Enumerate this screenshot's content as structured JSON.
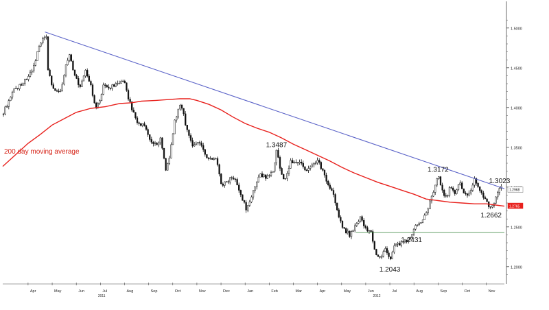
{
  "chart_data": {
    "type": "candlestick",
    "title": "",
    "xlabel": "",
    "ylabel": "",
    "ylim": [
      1.18,
      1.53
    ],
    "grid": false,
    "axis_position": "right",
    "y_ticks": [
      "1.5000",
      "1.4500",
      "1.4000",
      "1.3500",
      "1.3000",
      "1.2500",
      "1.2000"
    ],
    "x_ticks": [
      {
        "label": "Apr",
        "x": 0.0
      },
      {
        "label": "May",
        "x": 1.0
      },
      {
        "label": "Jun",
        "x": 2.0
      },
      {
        "label": "Jul",
        "x": 3.0
      },
      {
        "label": "Aug",
        "x": 4.0
      },
      {
        "label": "Sep",
        "x": 5.0
      },
      {
        "label": "Oct",
        "x": 6.0
      },
      {
        "label": "Nov",
        "x": 7.0
      },
      {
        "label": "Dec",
        "x": 8.0
      },
      {
        "label": "Jan",
        "x": 9.0
      },
      {
        "label": "Feb",
        "x": 10.0
      },
      {
        "label": "Mar",
        "x": 11.0
      },
      {
        "label": "Apr",
        "x": 12.0
      },
      {
        "label": "May",
        "x": 13.0
      },
      {
        "label": "Jun",
        "x": 14.0
      },
      {
        "label": "Jul",
        "x": 15.0
      },
      {
        "label": "Aug",
        "x": 16.0
      },
      {
        "label": "Sep",
        "x": 17.0
      },
      {
        "label": "Oct",
        "x": 18.0
      },
      {
        "label": "Nov",
        "x": 19.0
      }
    ],
    "year_labels": [
      {
        "label": "2011",
        "x": 2.9
      },
      {
        "label": "2012",
        "x": 14.3
      }
    ],
    "x_range": [
      -1.05,
      19.75
    ],
    "price_path": [
      [
        -1.05,
        1.392
      ],
      [
        -0.6,
        1.421
      ],
      [
        -0.2,
        1.43
      ],
      [
        0.2,
        1.448
      ],
      [
        0.5,
        1.482
      ],
      [
        0.75,
        1.493
      ],
      [
        0.8,
        1.451
      ],
      [
        0.95,
        1.432
      ],
      [
        1.15,
        1.418
      ],
      [
        1.35,
        1.422
      ],
      [
        1.6,
        1.458
      ],
      [
        1.75,
        1.466
      ],
      [
        1.9,
        1.44
      ],
      [
        2.15,
        1.428
      ],
      [
        2.4,
        1.446
      ],
      [
        2.6,
        1.428
      ],
      [
        2.8,
        1.4
      ],
      [
        3.0,
        1.41
      ],
      [
        3.15,
        1.43
      ],
      [
        3.4,
        1.425
      ],
      [
        3.7,
        1.43
      ],
      [
        3.95,
        1.436
      ],
      [
        4.15,
        1.412
      ],
      [
        4.45,
        1.385
      ],
      [
        4.8,
        1.376
      ],
      [
        5.2,
        1.352
      ],
      [
        5.5,
        1.36
      ],
      [
        5.7,
        1.322
      ],
      [
        5.85,
        1.335
      ],
      [
        6.1,
        1.386
      ],
      [
        6.35,
        1.405
      ],
      [
        6.55,
        1.375
      ],
      [
        6.8,
        1.352
      ],
      [
        7.1,
        1.356
      ],
      [
        7.45,
        1.333
      ],
      [
        7.8,
        1.336
      ],
      [
        8.0,
        1.302
      ],
      [
        8.35,
        1.31
      ],
      [
        8.55,
        1.312
      ],
      [
        8.8,
        1.292
      ],
      [
        9.05,
        1.272
      ],
      [
        9.3,
        1.292
      ],
      [
        9.6,
        1.315
      ],
      [
        9.9,
        1.312
      ],
      [
        10.15,
        1.32
      ],
      [
        10.3,
        1.345
      ],
      [
        10.5,
        1.318
      ],
      [
        10.65,
        1.308
      ],
      [
        10.9,
        1.332
      ],
      [
        11.1,
        1.33
      ],
      [
        11.3,
        1.332
      ],
      [
        11.5,
        1.318
      ],
      [
        11.75,
        1.325
      ],
      [
        12.0,
        1.336
      ],
      [
        12.15,
        1.325
      ],
      [
        12.4,
        1.307
      ],
      [
        12.6,
        1.296
      ],
      [
        12.85,
        1.268
      ],
      [
        13.1,
        1.246
      ],
      [
        13.35,
        1.24
      ],
      [
        13.55,
        1.252
      ],
      [
        13.8,
        1.262
      ],
      [
        14.05,
        1.244
      ],
      [
        14.2,
        1.248
      ],
      [
        14.4,
        1.216
      ],
      [
        14.6,
        1.212
      ],
      [
        14.8,
        1.224
      ],
      [
        15.0,
        1.206
      ],
      [
        15.2,
        1.228
      ],
      [
        15.4,
        1.228
      ],
      [
        15.6,
        1.232
      ],
      [
        15.85,
        1.236
      ],
      [
        16.05,
        1.249
      ],
      [
        16.3,
        1.256
      ],
      [
        16.55,
        1.272
      ],
      [
        16.85,
        1.296
      ],
      [
        17.0,
        1.314
      ],
      [
        17.15,
        1.296
      ],
      [
        17.35,
        1.286
      ],
      [
        17.5,
        1.3
      ],
      [
        17.7,
        1.292
      ],
      [
        17.9,
        1.305
      ],
      [
        18.1,
        1.292
      ],
      [
        18.3,
        1.292
      ],
      [
        18.5,
        1.31
      ],
      [
        18.75,
        1.296
      ],
      [
        18.95,
        1.286
      ],
      [
        19.1,
        1.278
      ],
      [
        19.2,
        1.274
      ],
      [
        19.35,
        1.283
      ],
      [
        19.5,
        1.295
      ],
      [
        19.65,
        1.302
      ],
      [
        19.75,
        1.299
      ]
    ],
    "moving_average": {
      "label": "200 day moving average",
      "points": [
        [
          -1.05,
          1.326
        ],
        [
          0.0,
          1.355
        ],
        [
          0.5,
          1.366
        ],
        [
          1.0,
          1.378
        ],
        [
          1.5,
          1.386
        ],
        [
          2.0,
          1.394
        ],
        [
          2.6,
          1.399
        ],
        [
          3.2,
          1.401
        ],
        [
          3.8,
          1.405
        ],
        [
          4.3,
          1.406
        ],
        [
          4.7,
          1.408
        ],
        [
          5.3,
          1.409
        ],
        [
          5.8,
          1.41
        ],
        [
          6.3,
          1.411
        ],
        [
          6.7,
          1.411
        ],
        [
          7.0,
          1.409
        ],
        [
          7.5,
          1.404
        ],
        [
          8.0,
          1.397
        ],
        [
          8.5,
          1.388
        ],
        [
          9.0,
          1.38
        ],
        [
          9.5,
          1.374
        ],
        [
          10.0,
          1.369
        ],
        [
          10.5,
          1.362
        ],
        [
          11.0,
          1.354
        ],
        [
          11.5,
          1.347
        ],
        [
          12.0,
          1.34
        ],
        [
          12.5,
          1.333
        ],
        [
          13.0,
          1.325
        ],
        [
          13.5,
          1.318
        ],
        [
          14.0,
          1.312
        ],
        [
          14.5,
          1.306
        ],
        [
          15.0,
          1.301
        ],
        [
          15.5,
          1.296
        ],
        [
          16.0,
          1.291
        ],
        [
          16.5,
          1.285
        ],
        [
          17.0,
          1.283
        ],
        [
          17.5,
          1.281
        ],
        [
          18.0,
          1.28
        ],
        [
          18.5,
          1.279
        ],
        [
          19.0,
          1.279
        ],
        [
          19.5,
          1.277
        ],
        [
          19.75,
          1.276
        ]
      ]
    },
    "trendline": [
      [
        0.7,
        1.495
      ],
      [
        19.75,
        1.298
      ]
    ],
    "support_line": {
      "value": 1.2431,
      "x_start": 13.6,
      "x_end": 19.75
    },
    "annotations": [
      {
        "text": "1.3487",
        "x": 10.3,
        "y": 1.345,
        "position": "above"
      },
      {
        "text": "1.3172",
        "x": 17.0,
        "y": 1.314,
        "position": "above"
      },
      {
        "text": "1.3023",
        "x": 19.55,
        "y": 1.3,
        "position": "above"
      },
      {
        "text": "1.2662",
        "x": 19.2,
        "y": 1.274,
        "position": "below"
      },
      {
        "text": "1.2431",
        "x": 15.9,
        "y": 1.2431,
        "position": "below"
      },
      {
        "text": "1.2043",
        "x": 15.0,
        "y": 1.206,
        "position": "below"
      }
    ],
    "right_labels": [
      {
        "text": "1.2968",
        "y": 1.2968,
        "kind": "price"
      },
      {
        "text": "1.2765",
        "y": 1.2765,
        "kind": "moving-average"
      }
    ],
    "colors": {
      "price": "#111111",
      "moving_average": "#e8201c",
      "trendline": "#5b63c8",
      "support": "#2e7d32",
      "axis": "#444444",
      "ma_label": "#d62418"
    }
  }
}
